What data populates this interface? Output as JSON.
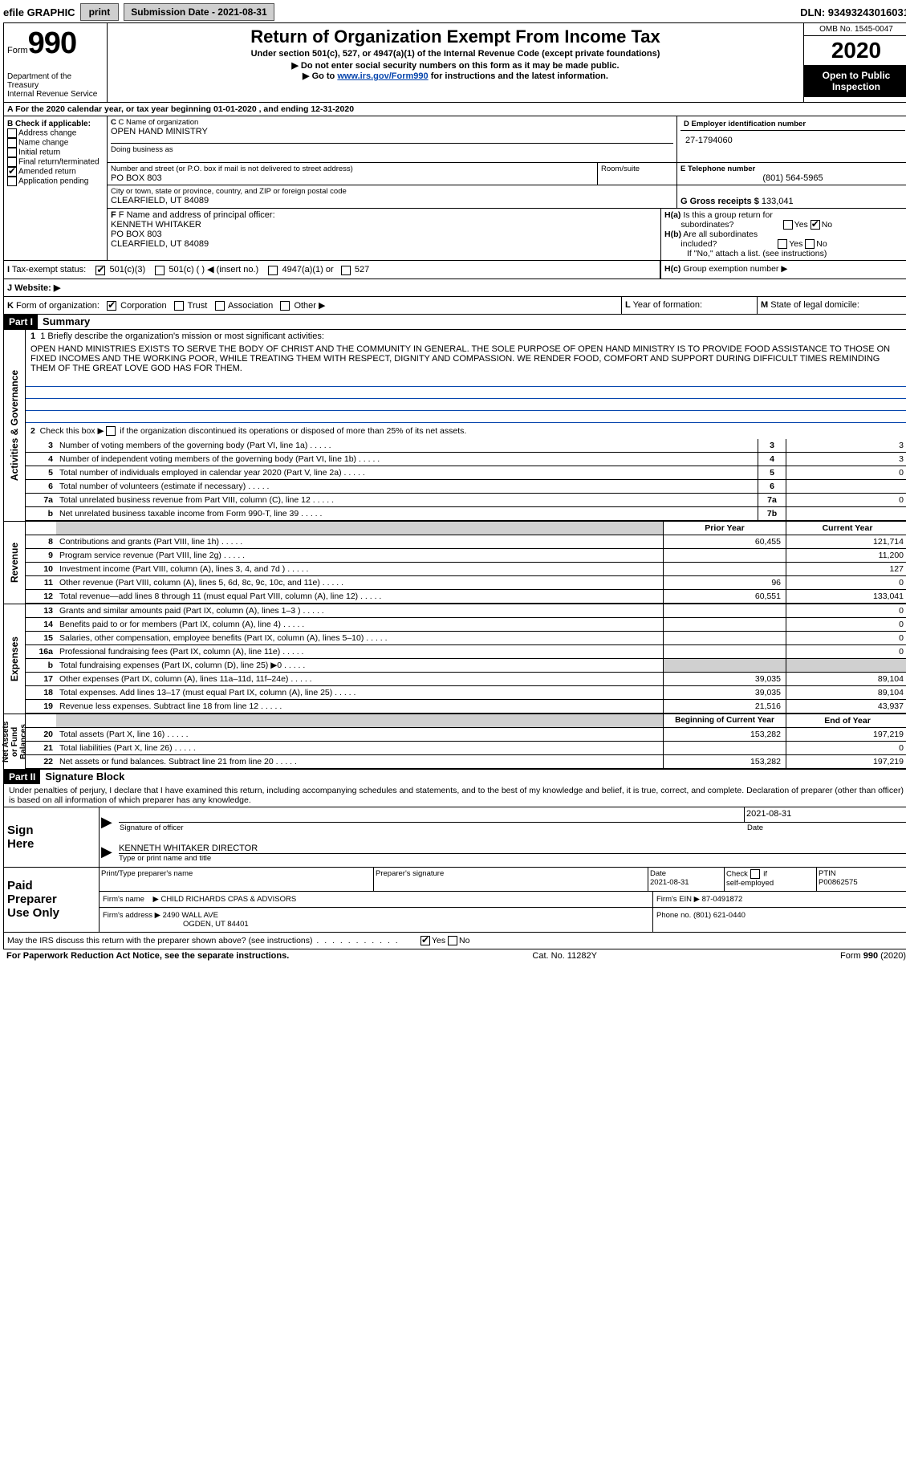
{
  "top": {
    "efile": "efile GRAPHIC",
    "print": "print",
    "submission": "Submission Date - 2021-08-31",
    "dln": "DLN: 93493243016031"
  },
  "header": {
    "form_label": "Form",
    "form_num": "990",
    "dept": "Department of the Treasury\nInternal Revenue Service",
    "title": "Return of Organization Exempt From Income Tax",
    "subtitle": "Under section 501(c), 527, or 4947(a)(1) of the Internal Revenue Code (except private foundations)",
    "note1": "▶ Do not enter social security numbers on this form as it may be made public.",
    "note2_pre": "▶ Go to ",
    "note2_link": "www.irs.gov/Form990",
    "note2_post": " for instructions and the latest information.",
    "omb": "OMB No. 1545-0047",
    "year": "2020",
    "inspect": "Open to Public Inspection"
  },
  "row_a": "A For the 2020 calendar year, or tax year beginning 01-01-2020    , and ending 12-31-2020",
  "section_b": {
    "header": "B Check if applicable:",
    "items": [
      "Address change",
      "Name change",
      "Initial return",
      "Final return/terminated",
      "Amended return",
      "Application pending"
    ],
    "checked_idx": 4
  },
  "section_c": {
    "label": "C Name of organization",
    "name": "OPEN HAND MINISTRY",
    "dba": "Doing business as",
    "addr_label": "Number and street (or P.O. box if mail is not delivered to street address)",
    "room": "Room/suite",
    "addr": "PO BOX 803",
    "city_label": "City or town, state or province, country, and ZIP or foreign postal code",
    "city": "CLEARFIELD, UT  84089"
  },
  "section_d": {
    "label": "D Employer identification number",
    "value": "27-1794060"
  },
  "section_e": {
    "label": "E Telephone number",
    "value": "(801) 564-5965"
  },
  "section_g": {
    "label": "G Gross receipts $",
    "value": "133,041"
  },
  "section_f": {
    "label": "F  Name and address of principal officer:",
    "line1": "KENNETH WHITAKER",
    "line2": "PO BOX 803",
    "line3": "CLEARFIELD, UT  84089"
  },
  "section_h": {
    "ha": "H(a)  Is this a group return for subordinates?",
    "hb": "H(b)  Are all subordinates included?",
    "hb_note": "If \"No,\" attach a list. (see instructions)",
    "hc": "H(c)  Group exemption number ▶",
    "yes": "Yes",
    "no": "No"
  },
  "section_i": {
    "label": "I  Tax-exempt status:",
    "opts": [
      "501(c)(3)",
      "501(c) (  ) ◀ (insert no.)",
      "4947(a)(1) or",
      "527"
    ]
  },
  "section_j": "J  Website: ▶",
  "section_k": {
    "label": "K Form of organization:",
    "opts": [
      "Corporation",
      "Trust",
      "Association",
      "Other ▶"
    ]
  },
  "section_l": "L Year of formation:",
  "section_m": "M State of legal domicile:",
  "part1": {
    "header": "Part I",
    "title": "Summary",
    "side_gov": "Activities & Governance",
    "side_rev": "Revenue",
    "side_exp": "Expenses",
    "side_net": "Net Assets or Fund Balances",
    "line1_label": "1  Briefly describe the organization's mission or most significant activities:",
    "mission": "OPEN HAND MINISTRIES EXISTS TO SERVE THE BODY OF CHRIST AND THE COMMUNITY IN GENERAL. THE SOLE PURPOSE OF OPEN HAND MINISTRY IS TO PROVIDE FOOD ASSISTANCE TO THOSE ON FIXED INCOMES AND THE WORKING POOR, WHILE TREATING THEM WITH RESPECT, DIGNITY AND COMPASSION. WE RENDER FOOD, COMFORT AND SUPPORT DURING DIFFICULT TIMES REMINDING THEM OF THE GREAT LOVE GOD HAS FOR THEM.",
    "line2": "Check this box ▶ ☐  if the organization discontinued its operations or disposed of more than 25% of its net assets.",
    "gov_lines": [
      {
        "n": "3",
        "t": "Number of voting members of the governing body (Part VI, line 1a)",
        "box": "3",
        "v": "3"
      },
      {
        "n": "4",
        "t": "Number of independent voting members of the governing body (Part VI, line 1b)",
        "box": "4",
        "v": "3"
      },
      {
        "n": "5",
        "t": "Total number of individuals employed in calendar year 2020 (Part V, line 2a)",
        "box": "5",
        "v": "0"
      },
      {
        "n": "6",
        "t": "Total number of volunteers (estimate if necessary)",
        "box": "6",
        "v": ""
      },
      {
        "n": "7a",
        "t": "Total unrelated business revenue from Part VIII, column (C), line 12",
        "box": "7a",
        "v": "0"
      },
      {
        "n": "b",
        "t": "Net unrelated business taxable income from Form 990-T, line 39",
        "box": "7b",
        "v": ""
      }
    ],
    "col_prior": "Prior Year",
    "col_current": "Current Year",
    "rev_lines": [
      {
        "n": "8",
        "t": "Contributions and grants (Part VIII, line 1h)",
        "p": "60,455",
        "c": "121,714"
      },
      {
        "n": "9",
        "t": "Program service revenue (Part VIII, line 2g)",
        "p": "",
        "c": "11,200"
      },
      {
        "n": "10",
        "t": "Investment income (Part VIII, column (A), lines 3, 4, and 7d )",
        "p": "",
        "c": "127"
      },
      {
        "n": "11",
        "t": "Other revenue (Part VIII, column (A), lines 5, 6d, 8c, 9c, 10c, and 11e)",
        "p": "96",
        "c": "0"
      },
      {
        "n": "12",
        "t": "Total revenue—add lines 8 through 11 (must equal Part VIII, column (A), line 12)",
        "p": "60,551",
        "c": "133,041"
      }
    ],
    "exp_lines": [
      {
        "n": "13",
        "t": "Grants and similar amounts paid (Part IX, column (A), lines 1–3 )",
        "p": "",
        "c": "0"
      },
      {
        "n": "14",
        "t": "Benefits paid to or for members (Part IX, column (A), line 4)",
        "p": "",
        "c": "0"
      },
      {
        "n": "15",
        "t": "Salaries, other compensation, employee benefits (Part IX, column (A), lines 5–10)",
        "p": "",
        "c": "0"
      },
      {
        "n": "16a",
        "t": "Professional fundraising fees (Part IX, column (A), line 11e)",
        "p": "",
        "c": "0"
      },
      {
        "n": "b",
        "t": "Total fundraising expenses (Part IX, column (D), line 25) ▶0",
        "p": "gray",
        "c": "gray"
      },
      {
        "n": "17",
        "t": "Other expenses (Part IX, column (A), lines 11a–11d, 11f–24e)",
        "p": "39,035",
        "c": "89,104"
      },
      {
        "n": "18",
        "t": "Total expenses. Add lines 13–17 (must equal Part IX, column (A), line 25)",
        "p": "39,035",
        "c": "89,104"
      },
      {
        "n": "19",
        "t": "Revenue less expenses. Subtract line 18 from line 12",
        "p": "21,516",
        "c": "43,937"
      }
    ],
    "col_begin": "Beginning of Current Year",
    "col_end": "End of Year",
    "net_lines": [
      {
        "n": "20",
        "t": "Total assets (Part X, line 16)",
        "p": "153,282",
        "c": "197,219"
      },
      {
        "n": "21",
        "t": "Total liabilities (Part X, line 26)",
        "p": "",
        "c": "0"
      },
      {
        "n": "22",
        "t": "Net assets or fund balances. Subtract line 21 from line 20",
        "p": "153,282",
        "c": "197,219"
      }
    ]
  },
  "part2": {
    "header": "Part II",
    "title": "Signature Block",
    "decl": "Under penalties of perjury, I declare that I have examined this return, including accompanying schedules and statements, and to the best of my knowledge and belief, it is true, correct, and complete. Declaration of preparer (other than officer) is based on all information of which preparer has any knowledge.",
    "sign": "Sign Here",
    "sig_label": "Signature of officer",
    "date": "2021-08-31",
    "date_label": "Date",
    "name": "KENNETH WHITAKER  DIRECTOR",
    "name_label": "Type or print name and title",
    "paid": "Paid Preparer Use Only",
    "prep_name_label": "Print/Type preparer's name",
    "prep_sig_label": "Preparer's signature",
    "prep_date": "2021-08-31",
    "check_label": "Check ☐ if self-employed",
    "ptin_label": "PTIN",
    "ptin": "P00862575",
    "firm_name_label": "Firm's name    ▶",
    "firm_name": "CHILD RICHARDS CPAS & ADVISORS",
    "firm_ein_label": "Firm's EIN ▶",
    "firm_ein": "87-0491872",
    "firm_addr_label": "Firm's address ▶",
    "firm_addr1": "2490 WALL AVE",
    "firm_addr2": "OGDEN, UT  84401",
    "phone_label": "Phone no.",
    "phone": "(801) 621-0440",
    "discuss": "May the IRS discuss this return with the preparer shown above? (see instructions)"
  },
  "footer": {
    "left": "For Paperwork Reduction Act Notice, see the separate instructions.",
    "mid": "Cat. No. 11282Y",
    "right_pre": "Form ",
    "right_form": "990",
    "right_post": " (2020)"
  }
}
